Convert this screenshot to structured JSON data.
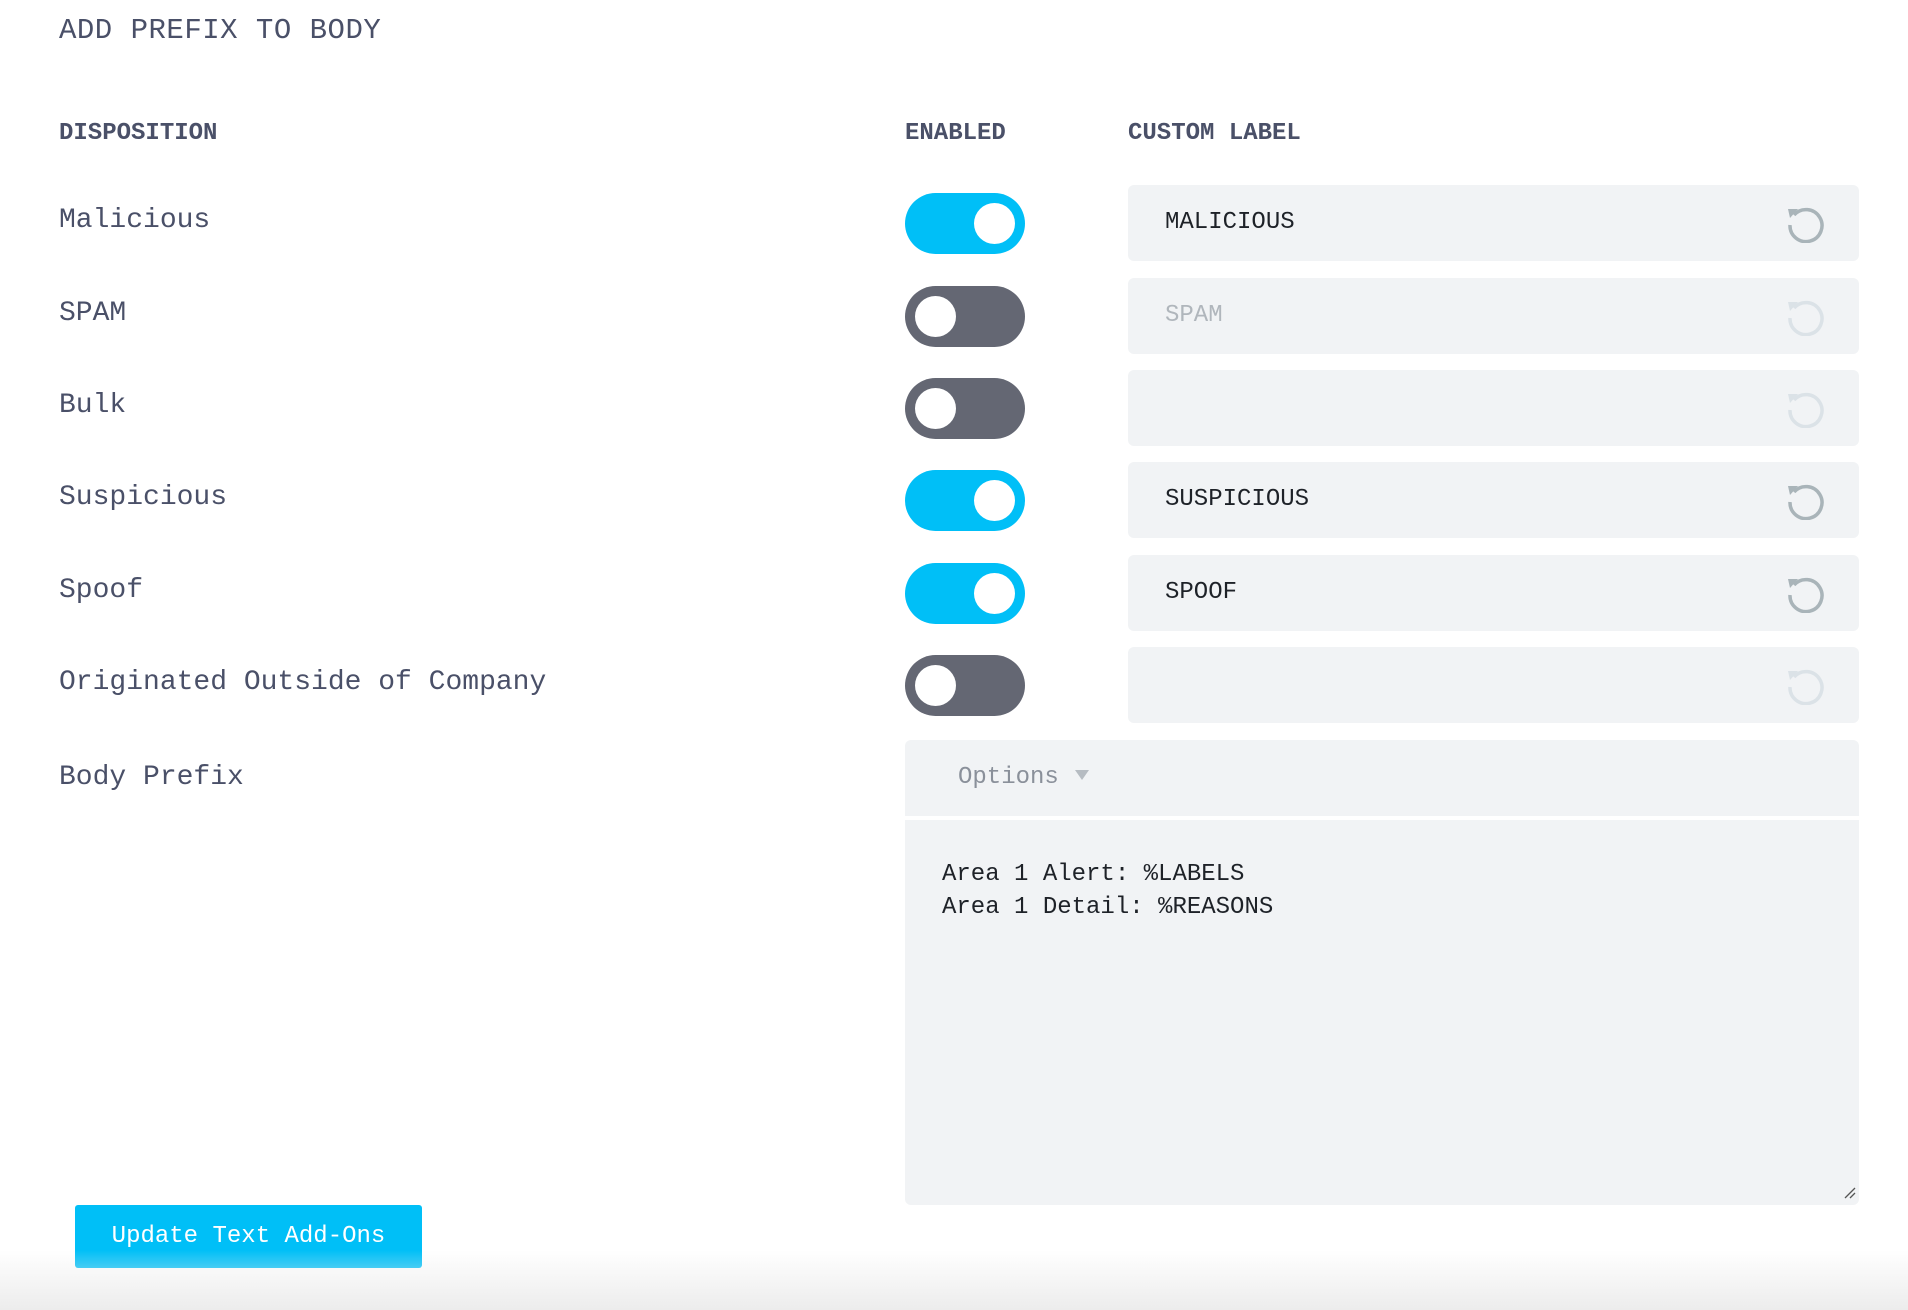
{
  "title": "ADD PREFIX TO BODY",
  "columns": {
    "disposition": "DISPOSITION",
    "enabled": "ENABLED",
    "custom_label": "CUSTOM LABEL"
  },
  "rows": [
    {
      "label": "Malicious",
      "enabled": true,
      "custom_label": "MALICIOUS"
    },
    {
      "label": "SPAM",
      "enabled": false,
      "custom_label": "SPAM"
    },
    {
      "label": "Bulk",
      "enabled": false,
      "custom_label": ""
    },
    {
      "label": "Suspicious",
      "enabled": true,
      "custom_label": "SUSPICIOUS"
    },
    {
      "label": "Spoof",
      "enabled": true,
      "custom_label": "SPOOF"
    },
    {
      "label": "Originated Outside of Company",
      "enabled": false,
      "custom_label": ""
    }
  ],
  "body_prefix": {
    "label": "Body Prefix",
    "options_label": "Options",
    "text": "Area 1 Alert: %LABELS\nArea 1 Detail: %REASONS"
  },
  "update_button": "Update Text Add-Ons",
  "colors": {
    "toggle_on": "#00bff7",
    "toggle_off": "#646773",
    "field_bg": "#f1f3f5",
    "reset_icon": "#a9b4b9"
  },
  "icons": {
    "reset": "reset-icon",
    "options_caret": "caret-down-icon"
  }
}
